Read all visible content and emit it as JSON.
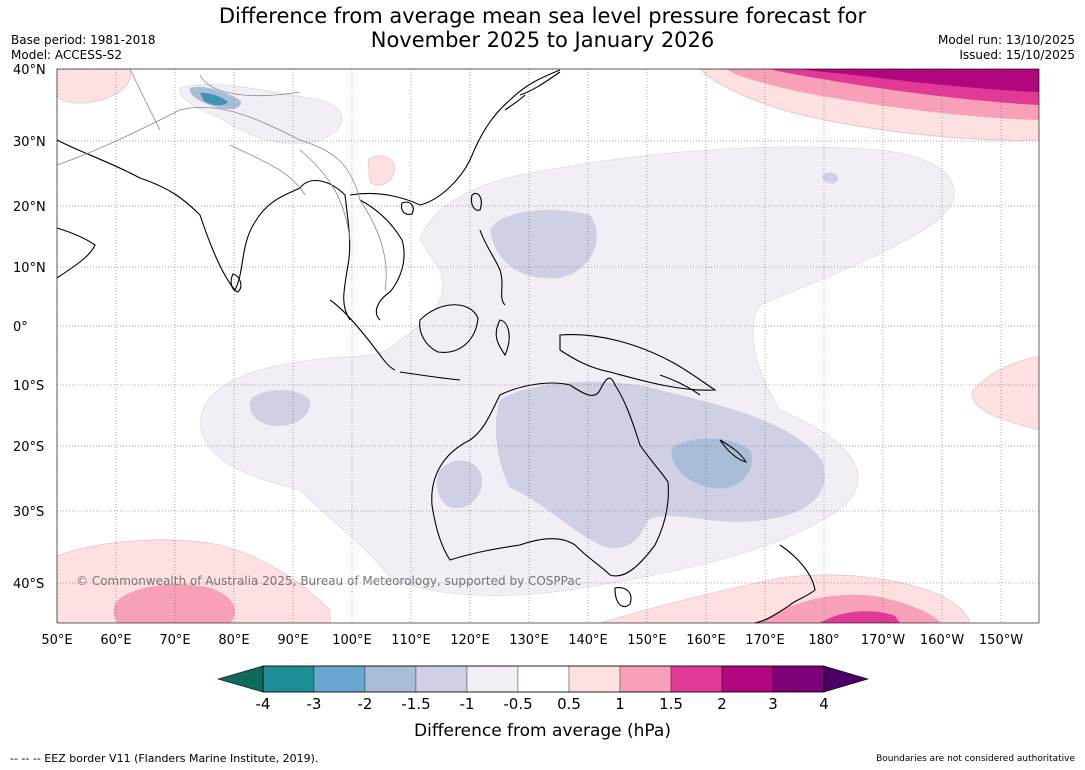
{
  "title": {
    "line1": "Difference from average mean sea level pressure forecast for",
    "line2": "November 2025 to January 2026"
  },
  "meta": {
    "base_period": "Base period: 1981-2018",
    "model": "Model: ACCESS-S2",
    "model_run": "Model run: 13/10/2025",
    "issued": "Issued: 15/10/2025"
  },
  "latitude_labels": [
    "40°N",
    "30°N",
    "20°N",
    "10°N",
    "0°",
    "10°S",
    "20°S",
    "30°S",
    "40°S"
  ],
  "longitude_labels": [
    "50°E",
    "60°E",
    "70°E",
    "80°E",
    "90°E",
    "100°E",
    "110°E",
    "120°E",
    "130°E",
    "140°E",
    "150°E",
    "160°E",
    "170°E",
    "180°",
    "170°W",
    "160°W",
    "150°W"
  ],
  "copyright": "© Commonwealth of Australia 2025, Bureau of Meteorology, supported by COSPPac",
  "colorbar": {
    "title": "Difference from average (hPa)",
    "tick_labels": [
      "-4",
      "-3",
      "-2",
      "-1.5",
      "-1",
      "-0.5",
      "0.5",
      "1",
      "1.5",
      "2",
      "3",
      "4"
    ],
    "colors": [
      "#0f6a5e",
      "#1e8f96",
      "#68a8d0",
      "#a9bdd8",
      "#d0d0e4",
      "#f3eef6",
      "#ffffff",
      "#fde0df",
      "#f7a0b8",
      "#e03a96",
      "#b0067e",
      "#7d0277",
      "#4b0066"
    ]
  },
  "footer": {
    "eez": "--  --  -- EEZ border V11 (Flanders Marine Institute, 2019).",
    "disclaimer": "Boundaries are not considered authoritative"
  }
}
